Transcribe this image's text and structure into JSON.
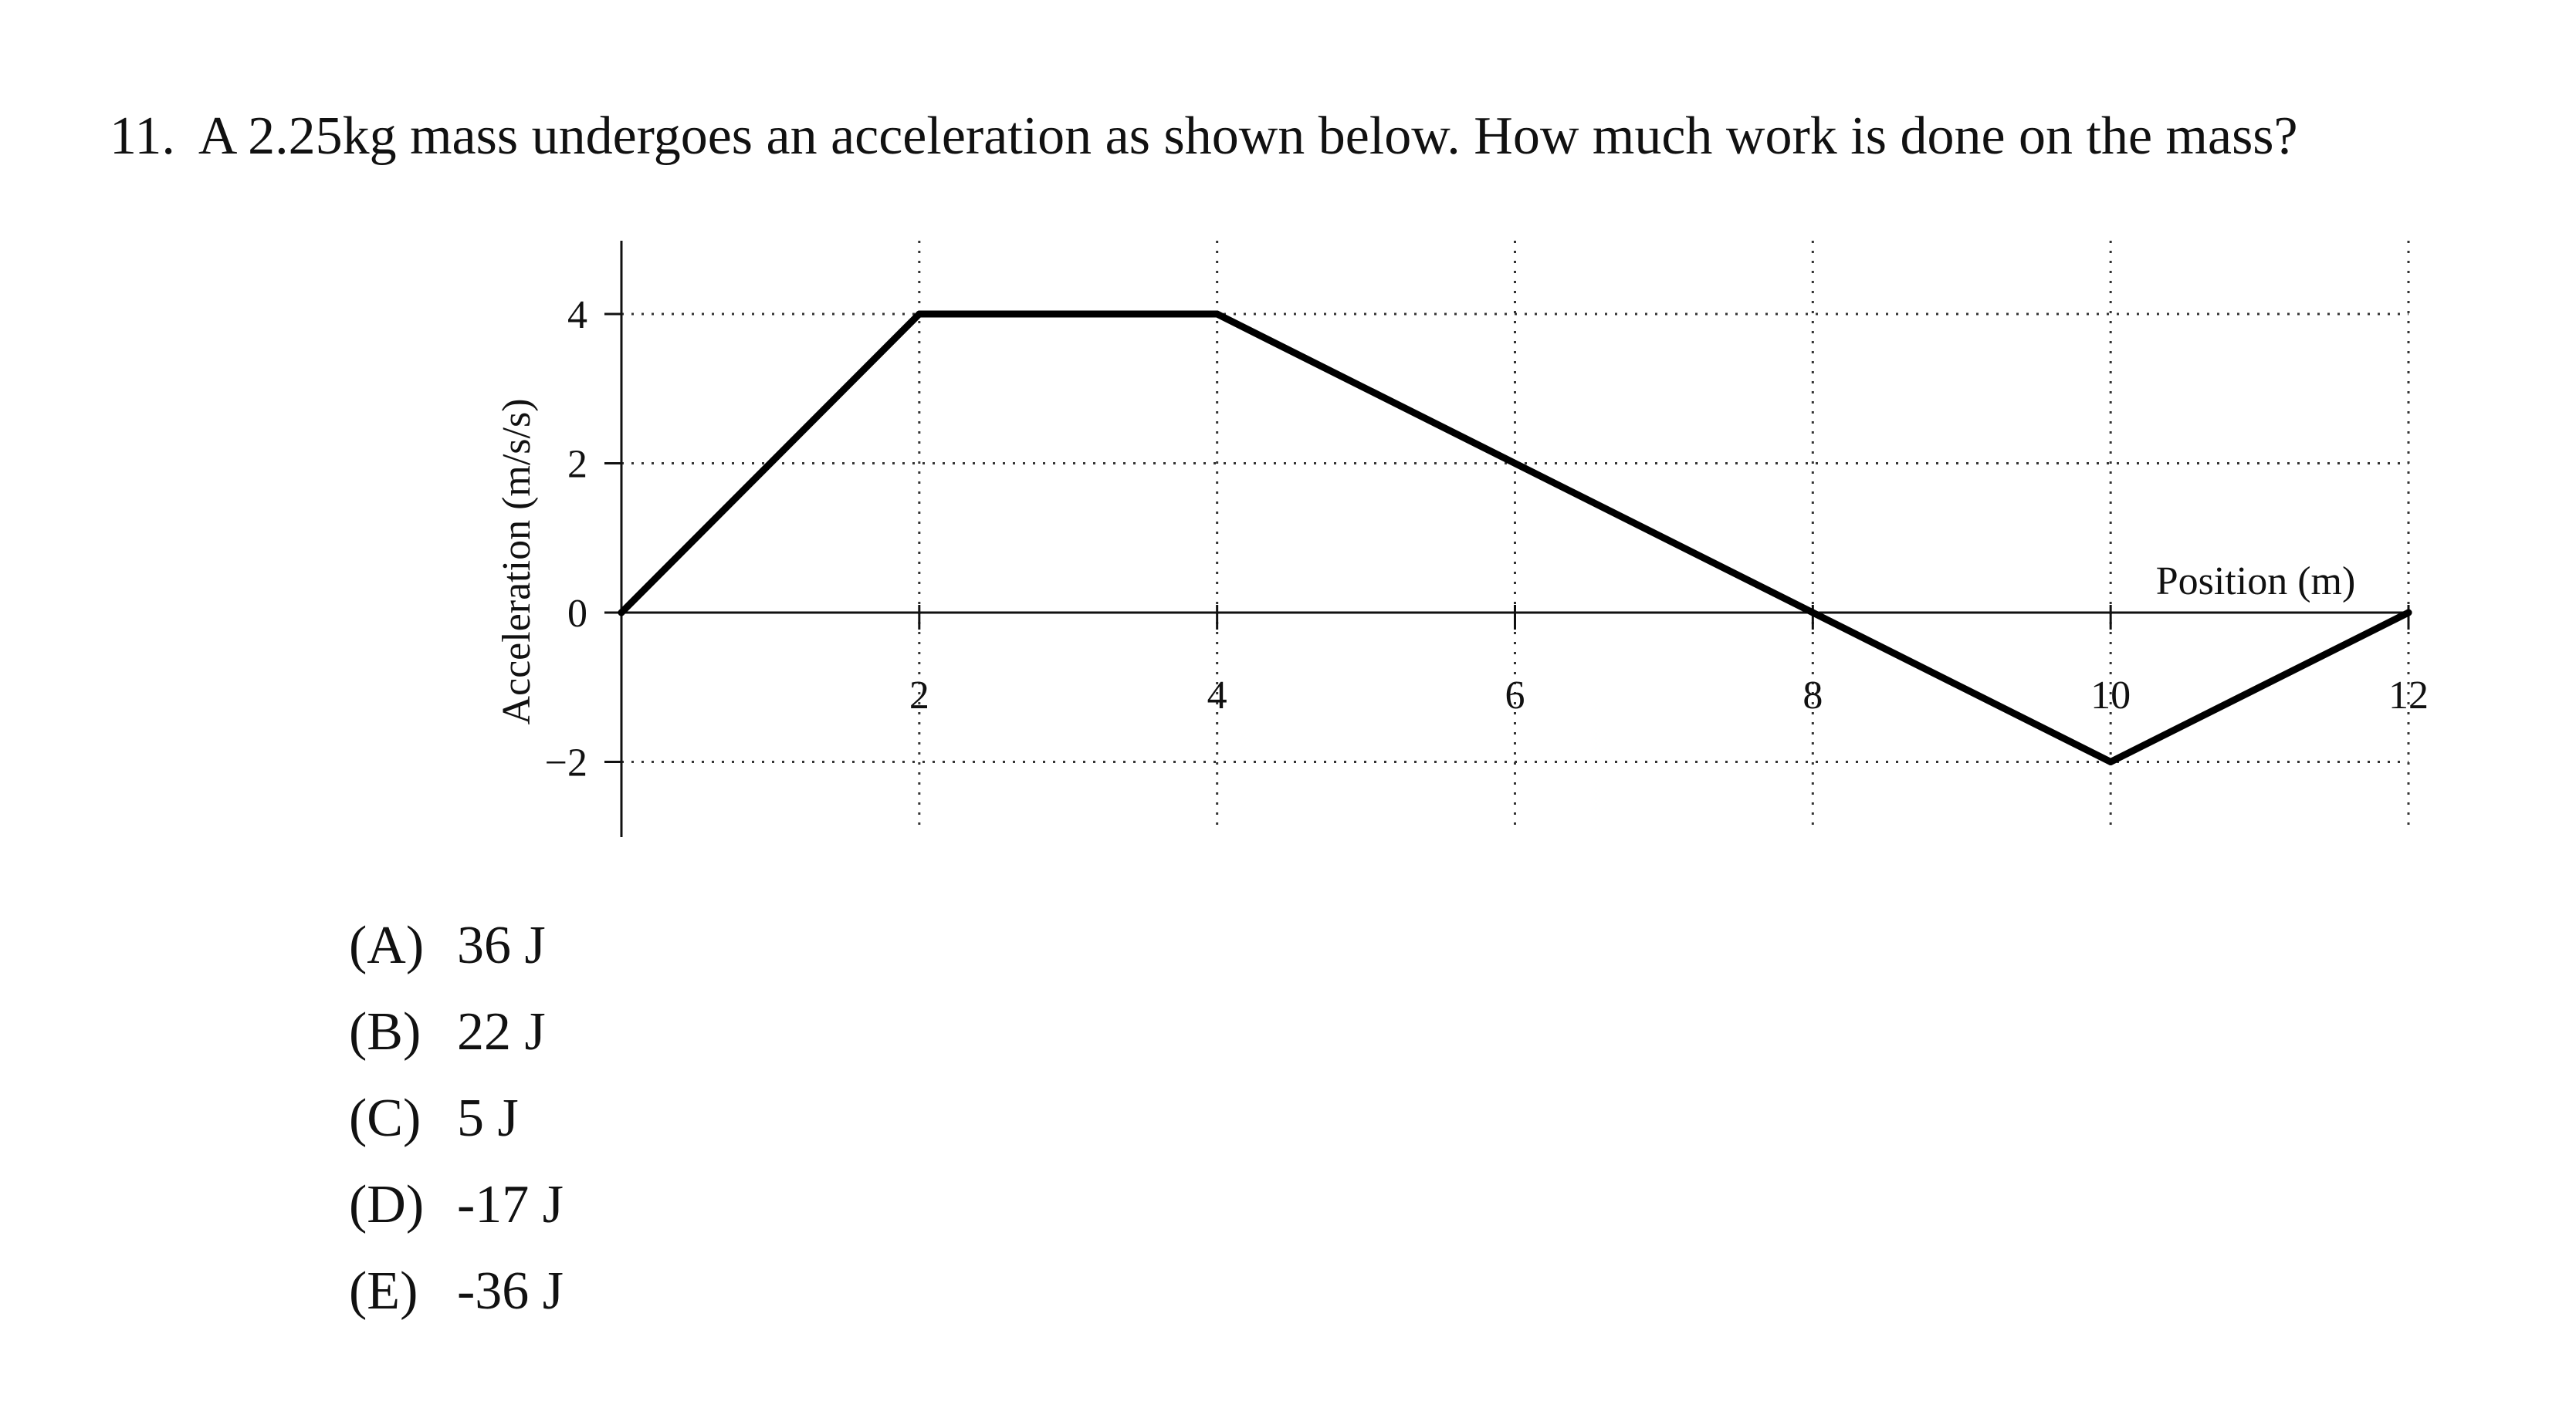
{
  "question": {
    "number": "11.",
    "text": "A 2.25kg mass undergoes an acceleration as shown below. How much work is done on the mass?"
  },
  "choices": [
    {
      "letter": "(A)",
      "text": "36 J"
    },
    {
      "letter": "(B)",
      "text": "22 J"
    },
    {
      "letter": "(C)",
      "text": "5 J"
    },
    {
      "letter": "(D)",
      "text": "-17 J"
    },
    {
      "letter": "(E)",
      "text": "-36 J"
    }
  ],
  "chart_data": {
    "type": "line",
    "title": "",
    "xlabel": "Position (m)",
    "ylabel": "Acceleration (m/s/s)",
    "xlim": [
      0,
      12
    ],
    "ylim": [
      -3,
      5
    ],
    "xticks": [
      2,
      4,
      6,
      8,
      10,
      12
    ],
    "xtick_labels": [
      "2",
      "4",
      "6",
      "8",
      "10",
      "12"
    ],
    "yticks": [
      -2,
      0,
      2,
      4
    ],
    "ytick_labels": [
      "−2",
      "0",
      "2",
      "4"
    ],
    "grid": true,
    "grid_style": "dotted",
    "series": [
      {
        "x": [
          0,
          2,
          4,
          8,
          10,
          12
        ],
        "y": [
          0,
          4,
          4,
          0,
          -2,
          0
        ]
      }
    ]
  }
}
